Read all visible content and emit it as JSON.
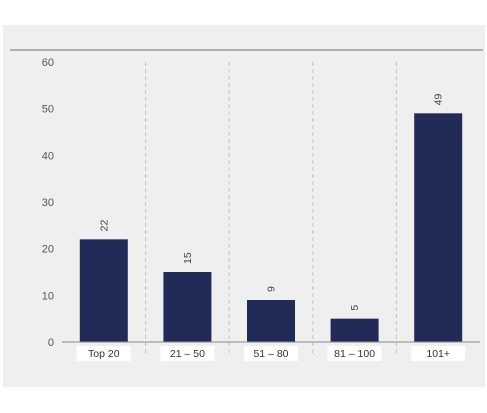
{
  "colors": {
    "bar": "#222b57",
    "panel": "#efefef",
    "axis": "#8a8a8a",
    "divider": "#c2c2c2",
    "category_box": "#ffffff"
  },
  "chart_data": {
    "type": "bar",
    "categories": [
      "Top 20",
      "21 – 50",
      "51 – 80",
      "81 – 100",
      "101+"
    ],
    "values": [
      22,
      15,
      9,
      5,
      49
    ],
    "y_ticks": [
      "0",
      "10",
      "20",
      "30",
      "40",
      "50",
      "60"
    ],
    "ylim": [
      0,
      60
    ],
    "title": "",
    "xlabel": "",
    "ylabel": "",
    "grid": false,
    "legend": "none",
    "data_labels": [
      "22",
      "15",
      "9",
      "5",
      "49"
    ]
  }
}
